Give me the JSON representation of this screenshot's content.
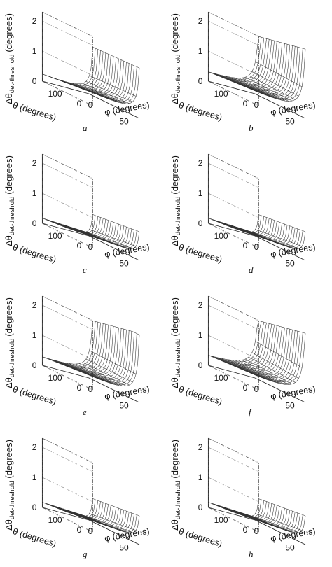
{
  "figure": {
    "letters": [
      "a",
      "b",
      "c",
      "d",
      "e",
      "f",
      "g",
      "h"
    ]
  },
  "axis_text": {
    "zlabel_main": "Δθ",
    "zlabel_sub": "det-threshold",
    "zlabel_unit": "(degrees)",
    "theta_label": "θ (degrees)",
    "phi_label": "φ (degrees)",
    "z_ticks": [
      "0",
      "1",
      "2"
    ],
    "theta_ticks": [
      "100",
      "0"
    ],
    "phi_ticks": [
      "0",
      "50"
    ]
  },
  "chart_data": [
    {
      "type": "surface",
      "panel": "a",
      "zlim": [
        0,
        2.3
      ],
      "theta_range": [
        0,
        180
      ],
      "phi_range": [
        0,
        90
      ],
      "z_ticks": [
        0,
        1,
        2
      ],
      "grid": true,
      "corner_value": 0.1,
      "steepness": 0.55,
      "z_max_shown": 2.3
    },
    {
      "type": "surface",
      "panel": "b",
      "zlim": [
        0,
        2.3
      ],
      "theta_range": [
        0,
        180
      ],
      "phi_range": [
        0,
        90
      ],
      "z_ticks": [
        0,
        1,
        2
      ],
      "grid": true,
      "corner_value": 0.1,
      "steepness": 0.85,
      "z_max_shown": 2.3
    },
    {
      "type": "surface",
      "panel": "c",
      "zlim": [
        0,
        2.3
      ],
      "theta_range": [
        0,
        180
      ],
      "phi_range": [
        0,
        90
      ],
      "z_ticks": [
        0,
        1,
        2
      ],
      "grid": true,
      "corner_value": 0.1,
      "steepness": 0.3,
      "z_max_shown": 1.2
    },
    {
      "type": "surface",
      "panel": "d",
      "zlim": [
        0,
        2.3
      ],
      "theta_range": [
        0,
        180
      ],
      "phi_range": [
        0,
        90
      ],
      "z_ticks": [
        0,
        1,
        2
      ],
      "grid": true,
      "corner_value": 0.1,
      "steepness": 0.3,
      "z_max_shown": 1.1
    },
    {
      "type": "surface",
      "panel": "e",
      "zlim": [
        0,
        2.3
      ],
      "theta_range": [
        0,
        180
      ],
      "phi_range": [
        0,
        90
      ],
      "z_ticks": [
        0,
        1,
        2
      ],
      "grid": true,
      "corner_value": 0.1,
      "steepness": 0.75,
      "z_max_shown": 2.3
    },
    {
      "type": "surface",
      "panel": "f",
      "zlim": [
        0,
        2.3
      ],
      "theta_range": [
        0,
        180
      ],
      "phi_range": [
        0,
        90
      ],
      "z_ticks": [
        0,
        1,
        2
      ],
      "grid": true,
      "corner_value": 0.1,
      "steepness": 0.95,
      "z_max_shown": 2.3
    },
    {
      "type": "surface",
      "panel": "g",
      "zlim": [
        0,
        2.3
      ],
      "theta_range": [
        0,
        180
      ],
      "phi_range": [
        0,
        90
      ],
      "z_ticks": [
        0,
        1,
        2
      ],
      "grid": true,
      "corner_value": 0.1,
      "steepness": 0.3,
      "z_max_shown": 1.2
    },
    {
      "type": "surface",
      "panel": "h",
      "zlim": [
        0,
        2.3
      ],
      "theta_range": [
        0,
        180
      ],
      "phi_range": [
        0,
        90
      ],
      "z_ticks": [
        0,
        1,
        2
      ],
      "grid": true,
      "corner_value": 0.1,
      "steepness": 0.3,
      "z_max_shown": 1.1
    }
  ]
}
